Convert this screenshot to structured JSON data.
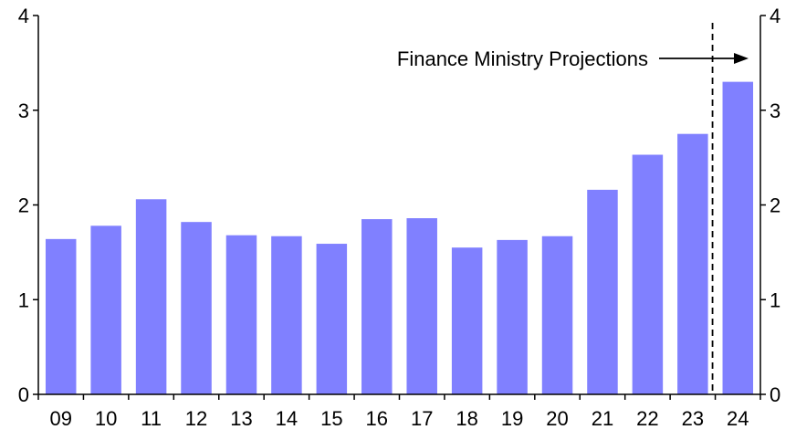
{
  "chart_data": {
    "type": "bar",
    "title": "",
    "xlabel": "",
    "ylabel": "",
    "categories": [
      "09",
      "10",
      "11",
      "12",
      "13",
      "14",
      "15",
      "16",
      "17",
      "18",
      "19",
      "20",
      "21",
      "22",
      "23",
      "24"
    ],
    "values": [
      1.64,
      1.78,
      2.06,
      1.82,
      1.68,
      1.67,
      1.59,
      1.85,
      1.86,
      1.55,
      1.63,
      1.67,
      2.16,
      2.53,
      2.75,
      3.3
    ],
    "ylim": [
      0,
      4
    ],
    "yticks": [
      0,
      1,
      2,
      3,
      4
    ],
    "secondary_yticks": [
      0,
      1,
      2,
      3,
      4
    ],
    "bar_color": "#8080ff",
    "grid": false,
    "legend": "none",
    "annotation": {
      "text": "Finance Ministry Projections",
      "divider_between": [
        "23",
        "24"
      ],
      "divider_style": "dashed"
    }
  }
}
